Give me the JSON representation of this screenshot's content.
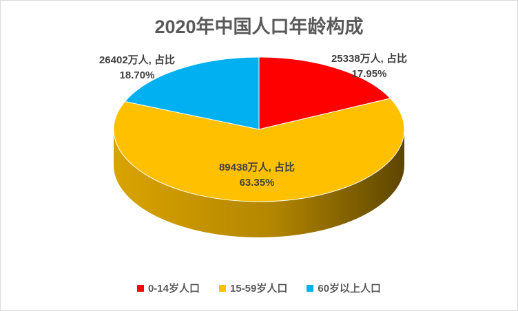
{
  "chart_data": {
    "type": "pie",
    "title": "2020年中国人口年龄构成",
    "categories": [
      "0-14岁人口",
      "15-59岁人口",
      "60岁以上人口"
    ],
    "values": [
      25338,
      89438,
      26402
    ],
    "percentages": [
      "17.95%",
      "63.35%",
      "18.70%"
    ],
    "data_labels": [
      {
        "line1": "25338万人, 占比",
        "line2": "17.95%"
      },
      {
        "line1": "89438万人, 占比",
        "line2": "63.35%"
      },
      {
        "line1": "26402万人, 占比",
        "line2": "18.70%"
      }
    ],
    "colors": [
      "#ff0000",
      "#ffc000",
      "#00b0f0"
    ],
    "legend_position": "bottom",
    "style": "3d"
  }
}
